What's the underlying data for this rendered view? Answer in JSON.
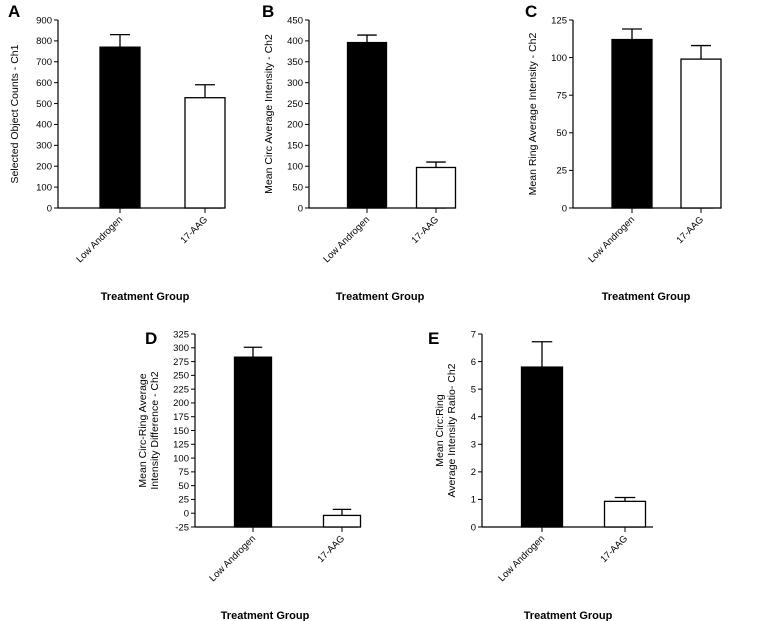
{
  "chart_data": [
    {
      "panel": "A",
      "type": "bar",
      "categories": [
        "Low Androgen",
        "17-AAG"
      ],
      "values": [
        770,
        528
      ],
      "errors": [
        60,
        62
      ],
      "bar_fills": [
        "#000000",
        "#ffffff"
      ],
      "ylabel": "Selected Object Counts - Ch1",
      "xlabel": "Treatment Group",
      "ylim": [
        0,
        900
      ],
      "yticks": [
        0,
        100,
        200,
        300,
        400,
        500,
        600,
        700,
        800,
        900
      ]
    },
    {
      "panel": "B",
      "type": "bar",
      "categories": [
        "Low Androgen",
        "17-AAG"
      ],
      "values": [
        396,
        97
      ],
      "errors": [
        18,
        13
      ],
      "bar_fills": [
        "#000000",
        "#ffffff"
      ],
      "ylabel": "Mean Circ Average Intensity - Ch2",
      "xlabel": "Treatment Group",
      "ylim": [
        0,
        450
      ],
      "yticks": [
        0,
        50,
        100,
        150,
        200,
        250,
        300,
        350,
        400,
        450
      ]
    },
    {
      "panel": "C",
      "type": "bar",
      "categories": [
        "Low Androgen",
        "17-AAG"
      ],
      "values": [
        112,
        99
      ],
      "errors": [
        7,
        9
      ],
      "bar_fills": [
        "#000000",
        "#ffffff"
      ],
      "ylabel": "Mean Ring Average Intensity - Ch2",
      "xlabel": "Treatment Group",
      "ylim": [
        0,
        125
      ],
      "yticks": [
        0,
        25,
        50,
        75,
        100,
        125
      ]
    },
    {
      "panel": "D",
      "type": "bar",
      "categories": [
        "Low Androgen",
        "17-AAG"
      ],
      "values": [
        283,
        -4
      ],
      "errors": [
        18,
        11
      ],
      "bar_fills": [
        "#000000",
        "#ffffff"
      ],
      "ylabel": [
        "Mean Circ-Ring Average",
        "Intensity Difference - Ch2"
      ],
      "xlabel": "Treatment Group",
      "ylim": [
        -25,
        325
      ],
      "bar_base": -25,
      "yticks": [
        -25,
        0,
        25,
        50,
        75,
        100,
        125,
        150,
        175,
        200,
        225,
        250,
        275,
        300,
        325
      ]
    },
    {
      "panel": "E",
      "type": "bar",
      "categories": [
        "Low Androgen",
        "17-AAG"
      ],
      "values": [
        5.8,
        0.93
      ],
      "errors": [
        0.92,
        0.14
      ],
      "bar_fills": [
        "#000000",
        "#ffffff"
      ],
      "ylabel": [
        "Mean Circ:Ring",
        "Average Intensity Ratio- Ch2"
      ],
      "xlabel": "Treatment Group",
      "ylim": [
        0,
        7
      ],
      "yticks": [
        0,
        1,
        2,
        3,
        4,
        5,
        6,
        7
      ]
    }
  ]
}
